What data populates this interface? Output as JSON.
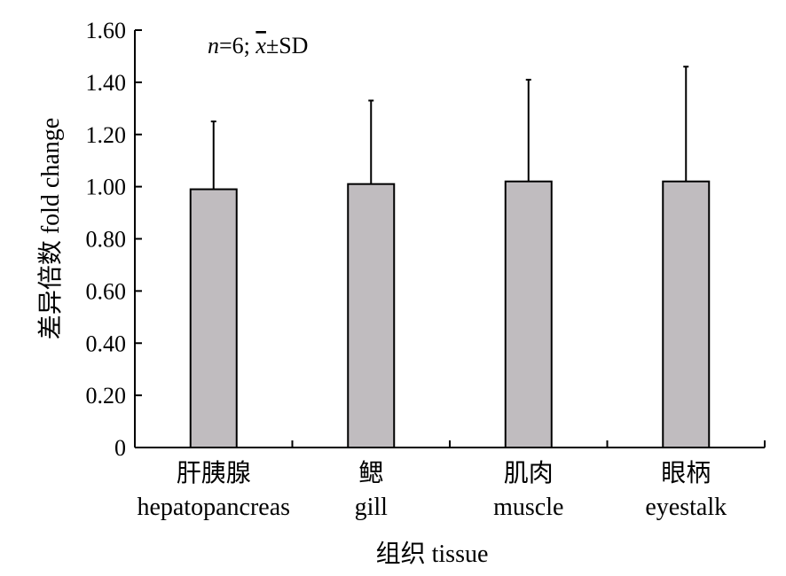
{
  "chart_data": {
    "type": "bar",
    "categories": [
      {
        "zh": "肝胰腺",
        "en": "hepatopancreas"
      },
      {
        "zh": "鳃",
        "en": "gill"
      },
      {
        "zh": "肌肉",
        "en": "muscle"
      },
      {
        "zh": "眼柄",
        "en": "eyestalk"
      }
    ],
    "series": [
      {
        "values": [
          0.99,
          1.01,
          1.02,
          1.02
        ],
        "errors": [
          0.26,
          0.32,
          0.39,
          0.44
        ]
      }
    ],
    "annotation": {
      "n": "n",
      "rest": "=6; ",
      "xbar": "x",
      "pm": "±SD"
    },
    "xlabel": "组织 tissue",
    "ylabel": "差异倍数 fold change",
    "ylim": [
      0,
      1.6
    ],
    "yticks": [
      "0",
      "0.20",
      "0.40",
      "0.60",
      "0.80",
      "1.00",
      "1.20",
      "1.40",
      "1.60"
    ],
    "tick_values": [
      0,
      0.2,
      0.4,
      0.6,
      0.8,
      1.0,
      1.2,
      1.4,
      1.6
    ],
    "grid": false,
    "colors": {
      "bar": "#c0bcbf",
      "stroke": "#000000"
    }
  }
}
